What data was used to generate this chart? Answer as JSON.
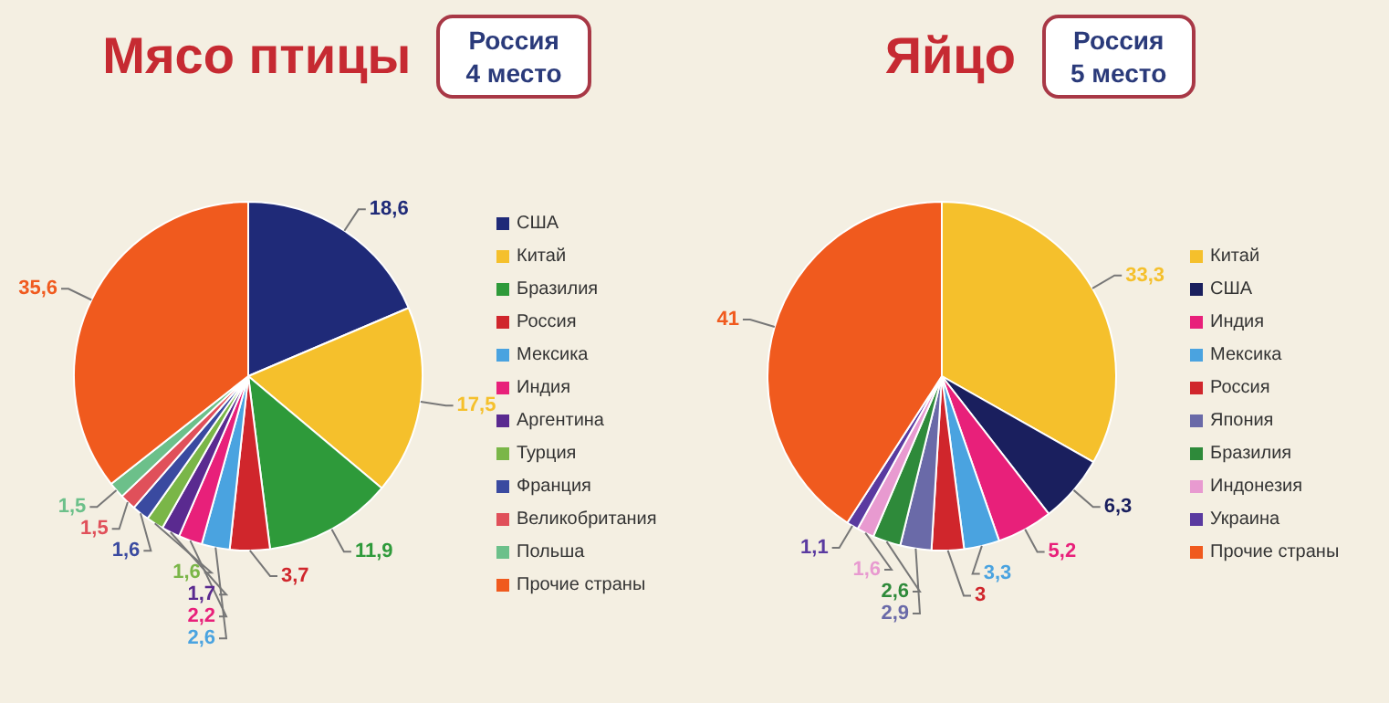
{
  "chart_data": [
    {
      "type": "pie",
      "title": "Мясо птицы",
      "subtitle": "Россия\n4 место",
      "legend": "right",
      "categories": [
        "США",
        "Китай",
        "Бразилия",
        "Россия",
        "Мексика",
        "Индия",
        "Аргентина",
        "Турция",
        "Франция",
        "Великобритания",
        "Польша",
        "Прочие страны"
      ],
      "values": [
        18.6,
        17.5,
        11.9,
        3.7,
        2.6,
        2.2,
        1.7,
        1.6,
        1.6,
        1.5,
        1.5,
        35.6
      ],
      "value_labels": [
        "18,6",
        "17,5",
        "11,9",
        "3,7",
        "2,6",
        "2,2",
        "1,7",
        "1,6",
        "1,6",
        "1,5",
        "1,5",
        "35,6"
      ],
      "colors": [
        "#1f2a78",
        "#f5c02c",
        "#2e9a3a",
        "#d0262c",
        "#4aa3e0",
        "#e8207a",
        "#5a2a90",
        "#7ab648",
        "#3a4aa0",
        "#e0505a",
        "#6cc08a",
        "#f05a1e"
      ]
    },
    {
      "type": "pie",
      "title": "Яйцо",
      "subtitle": "Россия\n5 место",
      "legend": "right",
      "categories": [
        "Китай",
        "США",
        "Индия",
        "Мексика",
        "Россия",
        "Япония",
        "Бразилия",
        "Индонезия",
        "Украина",
        "Прочие страны"
      ],
      "values": [
        33.3,
        6.3,
        5.2,
        3.3,
        3,
        2.9,
        2.6,
        1.6,
        1.1,
        41
      ],
      "value_labels": [
        "33,3",
        "6,3",
        "5,2",
        "3,3",
        "3",
        "2,9",
        "2,6",
        "1,6",
        "1,1",
        "41"
      ],
      "colors": [
        "#f5c02c",
        "#1a1f5e",
        "#e8207a",
        "#4aa3e0",
        "#d0262c",
        "#6a6aa8",
        "#2e8a3a",
        "#e89ad0",
        "#5a3aa0",
        "#f05a1e"
      ]
    }
  ]
}
